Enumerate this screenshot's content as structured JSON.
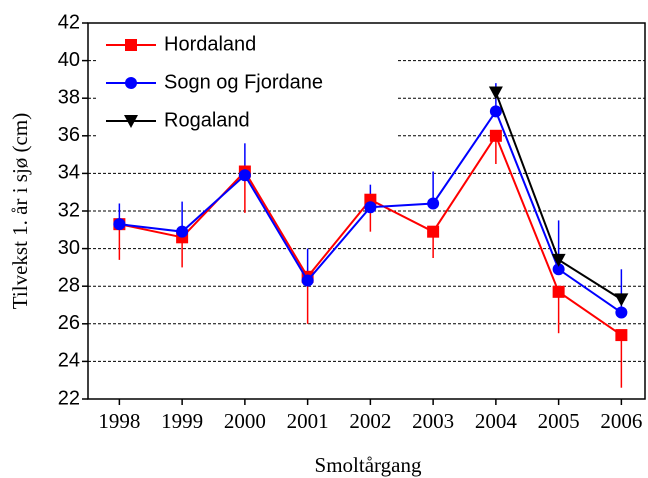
{
  "chart_data": {
    "type": "line",
    "xlabel": "Smoltårgang",
    "ylabel": "Tilvekst 1. år i sjø (cm)",
    "categories": [
      "1998",
      "1999",
      "2000",
      "2001",
      "2002",
      "2003",
      "2004",
      "2005",
      "2006"
    ],
    "series": [
      {
        "name": "Hordaland",
        "color": "#ff0000",
        "marker": "square",
        "error_direction": "down",
        "values": [
          31.3,
          30.6,
          34.1,
          28.5,
          32.6,
          30.9,
          36.0,
          27.7,
          25.4
        ],
        "errors": [
          1.9,
          1.6,
          2.2,
          2.5,
          1.7,
          1.4,
          1.5,
          2.2,
          2.8
        ]
      },
      {
        "name": "Sogn og Fjordane",
        "color": "#0000ff",
        "marker": "circle",
        "error_direction": "up",
        "values": [
          31.3,
          30.9,
          33.9,
          28.3,
          32.2,
          32.4,
          37.3,
          28.9,
          26.6
        ],
        "errors": [
          1.1,
          1.6,
          1.7,
          1.7,
          1.2,
          1.7,
          1.5,
          2.6,
          2.3
        ]
      },
      {
        "name": "Rogaland",
        "color": "#000000",
        "marker": "triangle-down",
        "values": [
          null,
          null,
          null,
          null,
          null,
          null,
          38.3,
          29.4,
          27.3
        ]
      }
    ],
    "ylim": [
      22,
      42
    ],
    "yticks": [
      22,
      24,
      26,
      28,
      30,
      32,
      34,
      36,
      38,
      40,
      42
    ],
    "grid": true,
    "legend": "upper left"
  }
}
